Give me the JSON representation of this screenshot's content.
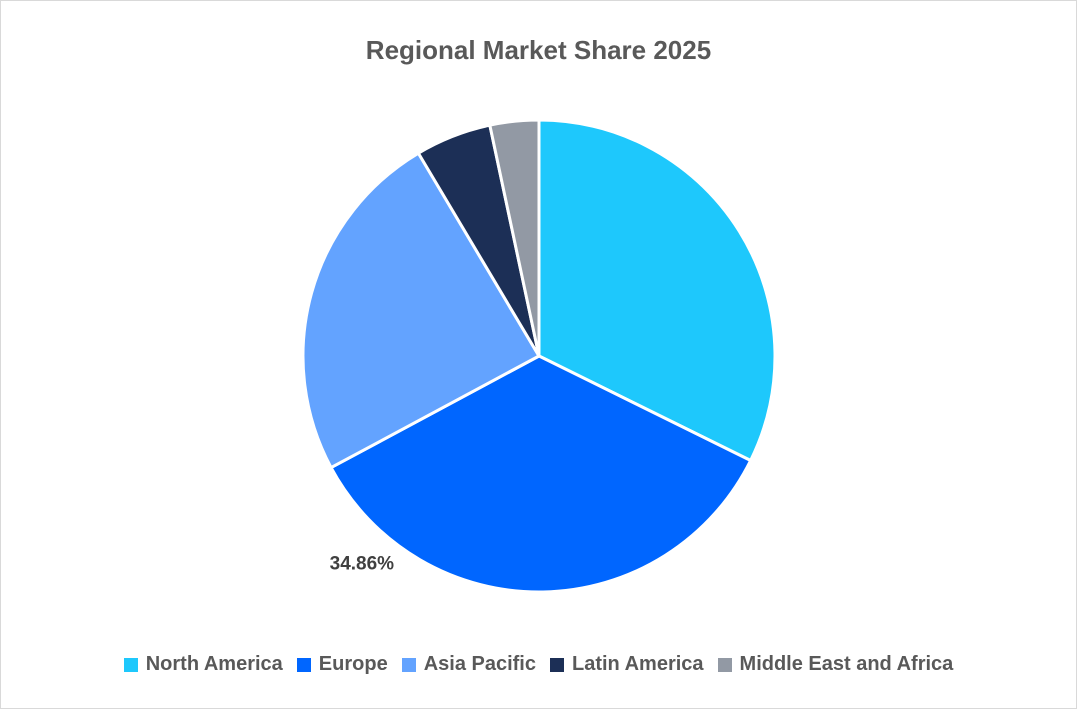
{
  "chart_data": {
    "type": "pie",
    "title": "Regional Market Share 2025",
    "categories": [
      "North America",
      "Europe",
      "Asia Pacific",
      "Latin America",
      "Middle East and Africa"
    ],
    "values": [
      32.3,
      34.86,
      24.3,
      5.2,
      3.34
    ],
    "colors": [
      "#1ec8fc",
      "#0066ff",
      "#63a3ff",
      "#1c2f56",
      "#9299a4"
    ],
    "data_labels": [
      {
        "category": "Europe",
        "text": "34.86%"
      }
    ],
    "legend": "bottom",
    "start_angle_deg": 0,
    "direction": "clockwise"
  }
}
